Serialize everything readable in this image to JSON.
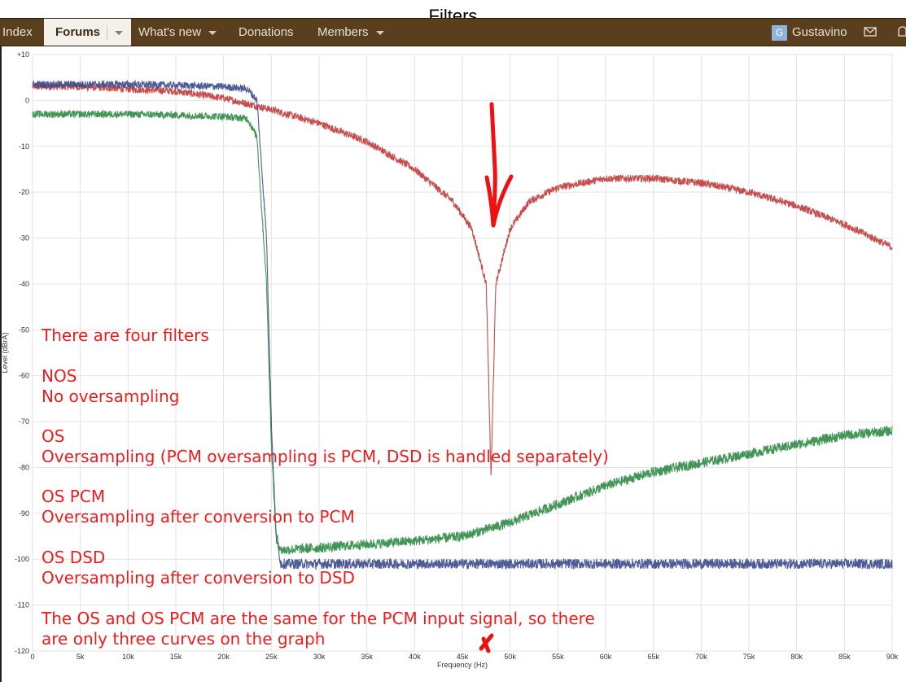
{
  "page_title": "Filters",
  "nav": {
    "items": [
      {
        "label": "Index"
      },
      {
        "label": "Forums"
      },
      {
        "label": "What's new"
      },
      {
        "label": "Donations"
      },
      {
        "label": "Members"
      }
    ],
    "user": {
      "initial": "G",
      "name": "Gustavino"
    }
  },
  "chart_data": {
    "type": "line",
    "xlabel": "Frequency (Hz)",
    "ylabel": "Level (dBrA)",
    "xlim": [
      0,
      90000
    ],
    "ylim": [
      -120,
      10
    ],
    "x_ticks": [
      "0",
      "5k",
      "10k",
      "15k",
      "20k",
      "25k",
      "30k",
      "35k",
      "40k",
      "45k",
      "50k",
      "55k",
      "60k",
      "65k",
      "70k",
      "75k",
      "80k",
      "85k",
      "90k"
    ],
    "y_ticks": [
      "+10",
      "0",
      "-10",
      "-20",
      "-30",
      "-40",
      "-50",
      "-60",
      "-70",
      "-80",
      "-90",
      "-100",
      "-110",
      "-120"
    ],
    "grid": true,
    "series": [
      {
        "color": "#c03a3a",
        "x": [
          0,
          5000,
          10000,
          15000,
          20000,
          25000,
          30000,
          35000,
          40000,
          44000,
          46000,
          47500,
          48000,
          48500,
          50000,
          52000,
          55000,
          60000,
          65000,
          70000,
          75000,
          80000,
          85000,
          90000
        ],
        "y": [
          3,
          3,
          2.5,
          2,
          0.5,
          -2,
          -5,
          -9,
          -15,
          -22,
          -28,
          -40,
          -82,
          -40,
          -28,
          -22,
          -19,
          -17,
          -17,
          -18,
          -20,
          -23,
          -27,
          -32
        ]
      },
      {
        "color": "#3a4a8c",
        "x": [
          0,
          5000,
          10000,
          15000,
          20000,
          22500,
          23500,
          24500,
          25000,
          25500,
          26000,
          30000,
          40000,
          50000,
          60000,
          70000,
          80000,
          90000
        ],
        "y": [
          3.5,
          3.5,
          3.5,
          3.3,
          3,
          2.5,
          0,
          -30,
          -70,
          -95,
          -101,
          -101,
          -101,
          -101,
          -101,
          -101,
          -101,
          -101
        ]
      },
      {
        "color": "#2e8a45",
        "x": [
          0,
          5000,
          10000,
          15000,
          20000,
          22500,
          23500,
          24500,
          25000,
          25500,
          26000,
          30000,
          40000,
          45000,
          50000,
          55000,
          60000,
          65000,
          70000,
          75000,
          80000,
          85000,
          90000
        ],
        "y": [
          -3,
          -3,
          -3,
          -3.2,
          -3.5,
          -4,
          -8,
          -40,
          -75,
          -95,
          -98,
          -97.5,
          -96,
          -95,
          -92,
          -88,
          -84,
          -81,
          -79,
          -77,
          -75,
          -73,
          -72
        ]
      }
    ],
    "annotations": [
      "There are four filters",
      "NOS",
      "No oversampling",
      "OS",
      "Oversampling (PCM oversampling is PCM, DSD is handled separately)",
      "OS PCM",
      "Oversampling after conversion to PCM",
      "OS DSD",
      "Oversampling after conversion to DSD",
      "The OS and OS PCM are the same for the PCM input signal, so there",
      "are only three curves on the graph"
    ]
  }
}
